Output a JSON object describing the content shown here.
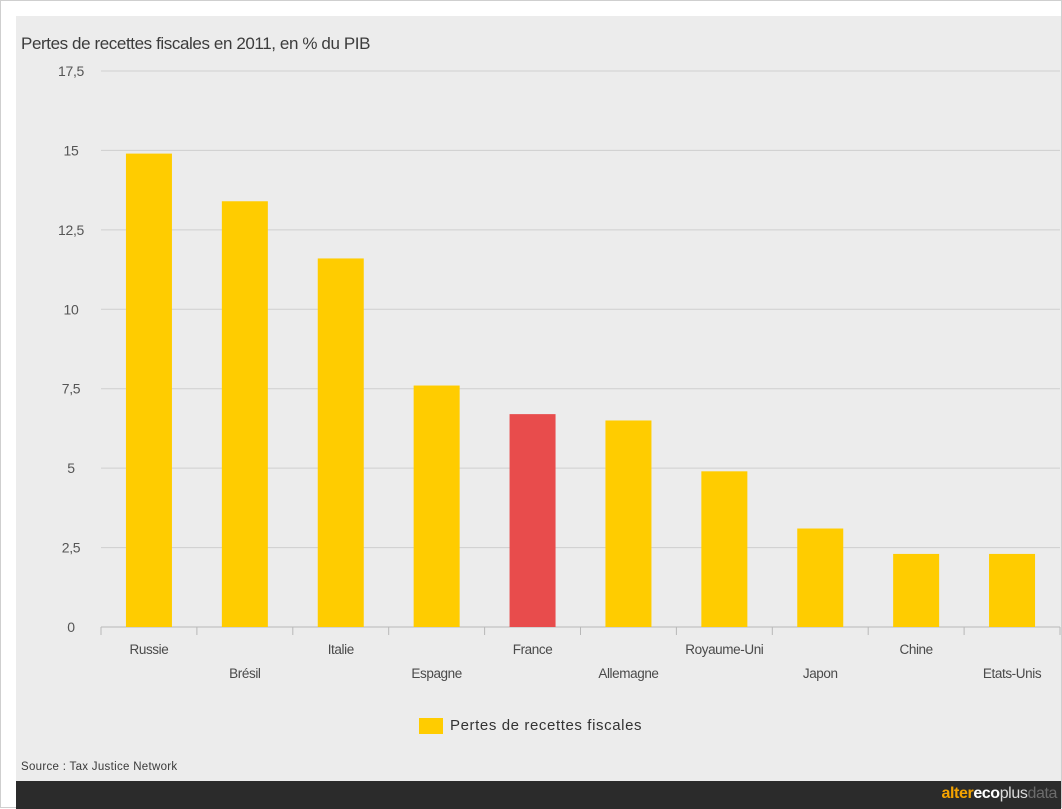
{
  "chart_data": {
    "type": "bar",
    "title": "Pertes de recettes fiscales en 2011, en % du PIB",
    "categories": [
      "Russie",
      "Brésil",
      "Italie",
      "Espagne",
      "France",
      "Allemagne",
      "Royaume-Uni",
      "Japon",
      "Chine",
      "Etats-Unis"
    ],
    "series": [
      {
        "name": "Pertes de recettes fiscales",
        "values": [
          14.9,
          13.4,
          11.6,
          7.6,
          6.7,
          6.5,
          4.9,
          3.1,
          2.3,
          2.3
        ]
      }
    ],
    "highlight_category": "France",
    "yticks": [
      "0",
      "2,5",
      "5",
      "7,5",
      "10",
      "12,5",
      "15",
      "17,5"
    ],
    "ylim": [
      0,
      17.5
    ],
    "grid": true,
    "legend_position": "bottom-center"
  },
  "colors": {
    "bar": "#ffcc00",
    "highlight": "#e84c4c",
    "grid": "#cfcfcf",
    "panel_background": "#ececec",
    "footer_background": "#2b2b2b"
  },
  "source": "Source : Tax Justice Network",
  "brand": {
    "alter": "alter",
    "eco": "eco",
    "plus": "plus",
    "data": "data"
  }
}
